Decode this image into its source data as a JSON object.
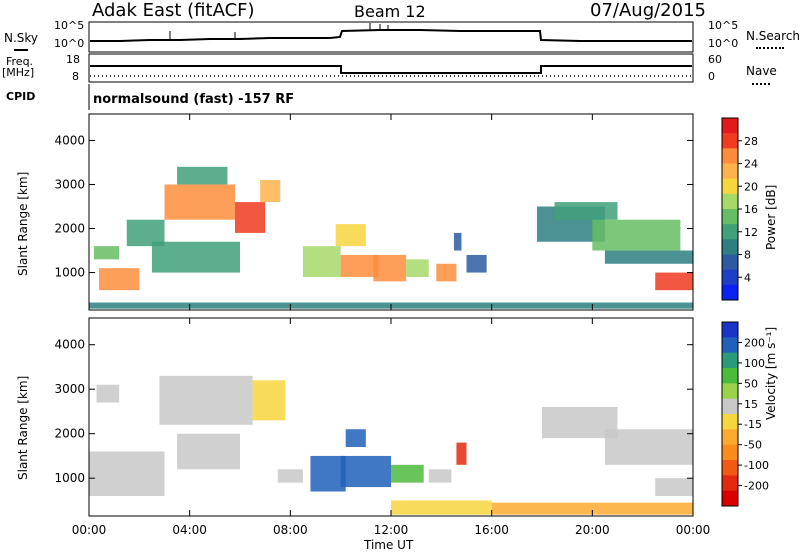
{
  "header": {
    "title": "Adak East (fitACF)",
    "beam": "Beam 12",
    "date": "07/Aug/2015"
  },
  "side_labels": {
    "nsky": "N.Sky",
    "freq": "Freq.",
    "freq_unit": "[MHz]",
    "cpid": "CPID",
    "nsearch": "N.Search",
    "nave": "Nave"
  },
  "cpid_text": "normalsound (fast) -157 RF",
  "sky_ticks": {
    "top_left": "10^5",
    "bottom_left": "10^0",
    "top_right": "10^5",
    "bottom_right": "10^0"
  },
  "freq_ticks": {
    "left": [
      "18",
      "8"
    ],
    "right": [
      "60",
      "0"
    ]
  },
  "power_colorbar": {
    "label": "Power [dB]",
    "ticks": [
      "28",
      "24",
      "20",
      "16",
      "12",
      "8",
      "4"
    ],
    "colors": [
      "#e31a1c",
      "#f03b20",
      "#fd8d3c",
      "#feb24c",
      "#f7d53d",
      "#a6d96a",
      "#66bd63",
      "#41a07a",
      "#2d7f80",
      "#2c5aa0",
      "#1d3fc7",
      "#0a22f0"
    ]
  },
  "velocity_colorbar": {
    "label": "Velocity [m s⁻¹]",
    "ticks": [
      "200",
      "100",
      "50",
      "15",
      "-15",
      "-50",
      "-100",
      "-200"
    ],
    "colors": [
      "#1a34c8",
      "#2060b8",
      "#2a9a7a",
      "#4cbb3c",
      "#9ad24a",
      "#c8c8c8",
      "#f7d53d",
      "#fbaa30",
      "#f98c1a",
      "#f05a14",
      "#e32a10",
      "#d90000"
    ]
  },
  "chart_data": [
    {
      "type": "heatmap",
      "title": "Power",
      "ylabel": "Slant Range [km]",
      "ylim": [
        150,
        4600
      ],
      "yticks": [
        "4000",
        "3000",
        "2000",
        "1000"
      ],
      "xlabel": "",
      "xticks": [
        "00:00",
        "04:00",
        "08:00",
        "12:00",
        "16:00",
        "20:00",
        "00:00"
      ],
      "colorbar_range_db": [
        0,
        32
      ],
      "cells": [
        {
          "t": [
            0.4,
            2.0
          ],
          "r": [
            600,
            1100
          ],
          "v": 26
        },
        {
          "t": [
            0.2,
            1.2
          ],
          "r": [
            1300,
            1600
          ],
          "v": 14
        },
        {
          "t": [
            1.5,
            3.0
          ],
          "r": [
            1600,
            2200
          ],
          "v": 12
        },
        {
          "t": [
            3.0,
            5.8
          ],
          "r": [
            2200,
            3000
          ],
          "v": 26
        },
        {
          "t": [
            5.8,
            7.0
          ],
          "r": [
            1900,
            2600
          ],
          "v": 28
        },
        {
          "t": [
            6.8,
            7.6
          ],
          "r": [
            2600,
            3100
          ],
          "v": 22
        },
        {
          "t": [
            3.5,
            5.5
          ],
          "r": [
            3000,
            3400
          ],
          "v": 12
        },
        {
          "t": [
            2.5,
            6.0
          ],
          "r": [
            1000,
            1700
          ],
          "v": 12
        },
        {
          "t": [
            8.5,
            10.0
          ],
          "r": [
            900,
            1600
          ],
          "v": 16
        },
        {
          "t": [
            9.8,
            11.0
          ],
          "r": [
            1600,
            2100
          ],
          "v": 20
        },
        {
          "t": [
            10.0,
            11.5
          ],
          "r": [
            900,
            1400
          ],
          "v": 24
        },
        {
          "t": [
            11.3,
            12.6
          ],
          "r": [
            800,
            1400
          ],
          "v": 26
        },
        {
          "t": [
            12.6,
            13.5
          ],
          "r": [
            900,
            1300
          ],
          "v": 18
        },
        {
          "t": [
            13.8,
            14.6
          ],
          "r": [
            800,
            1200
          ],
          "v": 24
        },
        {
          "t": [
            14.5,
            14.8
          ],
          "r": [
            1500,
            1900
          ],
          "v": 6
        },
        {
          "t": [
            15.0,
            15.8
          ],
          "r": [
            1000,
            1400
          ],
          "v": 6
        },
        {
          "t": [
            17.8,
            20.5
          ],
          "r": [
            1700,
            2500
          ],
          "v": 8
        },
        {
          "t": [
            18.5,
            21.0
          ],
          "r": [
            2200,
            2600
          ],
          "v": 12
        },
        {
          "t": [
            20.0,
            23.5
          ],
          "r": [
            1500,
            2200
          ],
          "v": 14
        },
        {
          "t": [
            20.5,
            24.0
          ],
          "r": [
            1200,
            1500
          ],
          "v": 10
        },
        {
          "t": [
            22.5,
            24.0
          ],
          "r": [
            600,
            1000
          ],
          "v": 28
        },
        {
          "t": [
            0.0,
            24.0
          ],
          "r": [
            180,
            320
          ],
          "v": 8
        }
      ]
    },
    {
      "type": "heatmap",
      "title": "Velocity",
      "ylabel": "Slant Range [km]",
      "ylim": [
        150,
        4600
      ],
      "yticks": [
        "4000",
        "3000",
        "2000",
        "1000"
      ],
      "xlabel": "Time UT",
      "xticks": [
        "00:00",
        "04:00",
        "08:00",
        "12:00",
        "16:00",
        "20:00",
        "00:00"
      ],
      "colorbar_range_ms": [
        -250,
        250
      ],
      "cells": [
        {
          "t": [
            0.0,
            3.0
          ],
          "r": [
            600,
            1600
          ],
          "v": 0
        },
        {
          "t": [
            0.3,
            1.2
          ],
          "r": [
            2700,
            3100
          ],
          "v": 0
        },
        {
          "t": [
            2.8,
            6.5
          ],
          "r": [
            2200,
            3300
          ],
          "v": 0
        },
        {
          "t": [
            6.5,
            7.8
          ],
          "r": [
            2300,
            3200
          ],
          "v": -40
        },
        {
          "t": [
            3.5,
            6.0
          ],
          "r": [
            1200,
            2000
          ],
          "v": 0
        },
        {
          "t": [
            7.5,
            8.5
          ],
          "r": [
            900,
            1200
          ],
          "v": 10
        },
        {
          "t": [
            8.8,
            10.2
          ],
          "r": [
            700,
            1500
          ],
          "v": 180
        },
        {
          "t": [
            10.2,
            11.0
          ],
          "r": [
            1700,
            2100
          ],
          "v": 200
        },
        {
          "t": [
            10.0,
            12.0
          ],
          "r": [
            800,
            1500
          ],
          "v": 180
        },
        {
          "t": [
            12.0,
            13.3
          ],
          "r": [
            900,
            1300
          ],
          "v": 90
        },
        {
          "t": [
            13.5,
            14.4
          ],
          "r": [
            900,
            1200
          ],
          "v": 30
        },
        {
          "t": [
            14.6,
            15.0
          ],
          "r": [
            1300,
            1800
          ],
          "v": -200
        },
        {
          "t": [
            12.0,
            16.0
          ],
          "r": [
            180,
            500
          ],
          "v": -30
        },
        {
          "t": [
            16.0,
            24.0
          ],
          "r": [
            180,
            450
          ],
          "v": -60
        },
        {
          "t": [
            18.0,
            21.0
          ],
          "r": [
            1900,
            2600
          ],
          "v": 0
        },
        {
          "t": [
            20.5,
            24.0
          ],
          "r": [
            1300,
            2100
          ],
          "v": 0
        },
        {
          "t": [
            22.5,
            24.0
          ],
          "r": [
            600,
            1000
          ],
          "v": 0
        }
      ]
    }
  ]
}
